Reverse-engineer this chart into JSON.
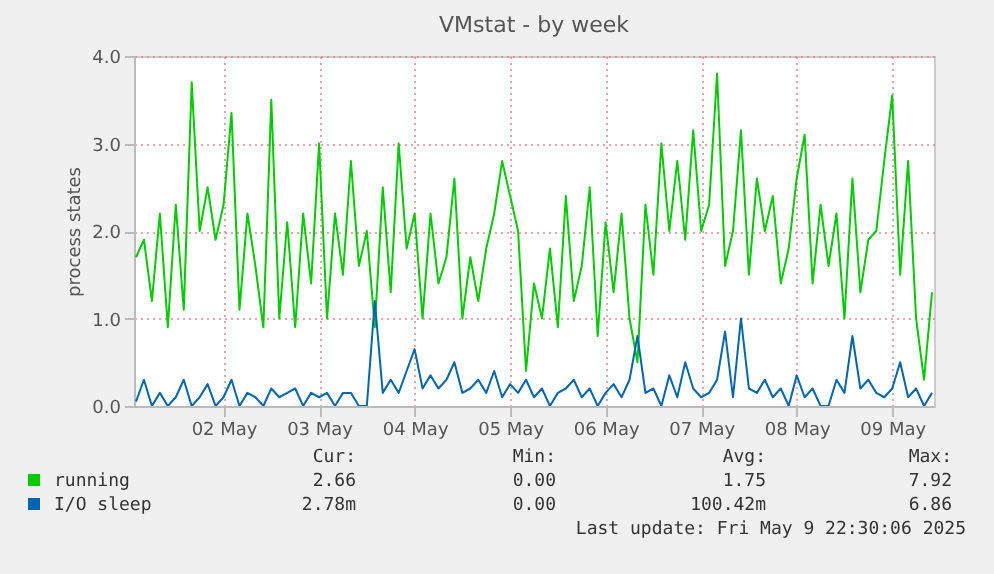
{
  "chart_data": {
    "type": "line",
    "title": "VMstat - by week",
    "ylabel": "process states",
    "x": [
      "2025-05-01T14:00",
      "2025-05-01T16:00",
      "2025-05-01T18:00",
      "2025-05-01T20:00",
      "2025-05-01T22:00",
      "2025-05-02T00:00",
      "2025-05-02T02:00",
      "2025-05-02T04:00",
      "2025-05-02T06:00",
      "2025-05-02T08:00",
      "2025-05-02T10:00",
      "2025-05-02T12:00",
      "2025-05-02T14:00",
      "2025-05-02T16:00",
      "2025-05-02T18:00",
      "2025-05-02T20:00",
      "2025-05-02T22:00",
      "2025-05-03T00:00",
      "2025-05-03T02:00",
      "2025-05-03T04:00",
      "2025-05-03T06:00",
      "2025-05-03T08:00",
      "2025-05-03T10:00",
      "2025-05-03T12:00",
      "2025-05-03T14:00",
      "2025-05-03T16:00",
      "2025-05-03T18:00",
      "2025-05-03T20:00",
      "2025-05-03T22:00",
      "2025-05-04T00:00",
      "2025-05-04T02:00",
      "2025-05-04T04:00",
      "2025-05-04T06:00",
      "2025-05-04T08:00",
      "2025-05-04T10:00",
      "2025-05-04T12:00",
      "2025-05-04T14:00",
      "2025-05-04T16:00",
      "2025-05-04T18:00",
      "2025-05-04T20:00",
      "2025-05-04T22:00",
      "2025-05-05T00:00",
      "2025-05-05T02:00",
      "2025-05-05T04:00",
      "2025-05-05T06:00",
      "2025-05-05T08:00",
      "2025-05-05T10:00",
      "2025-05-05T12:00",
      "2025-05-05T14:00",
      "2025-05-05T16:00",
      "2025-05-05T18:00",
      "2025-05-05T20:00",
      "2025-05-05T22:00",
      "2025-05-06T00:00",
      "2025-05-06T02:00",
      "2025-05-06T04:00",
      "2025-05-06T06:00",
      "2025-05-06T08:00",
      "2025-05-06T10:00",
      "2025-05-06T12:00",
      "2025-05-06T14:00",
      "2025-05-06T16:00",
      "2025-05-06T18:00",
      "2025-05-06T20:00",
      "2025-05-06T22:00",
      "2025-05-07T00:00",
      "2025-05-07T02:00",
      "2025-05-07T04:00",
      "2025-05-07T06:00",
      "2025-05-07T08:00",
      "2025-05-07T10:00",
      "2025-05-07T12:00",
      "2025-05-07T14:00",
      "2025-05-07T16:00",
      "2025-05-07T18:00",
      "2025-05-07T20:00",
      "2025-05-07T22:00",
      "2025-05-08T00:00",
      "2025-05-08T02:00",
      "2025-05-08T04:00",
      "2025-05-08T06:00",
      "2025-05-08T08:00",
      "2025-05-08T10:00",
      "2025-05-08T12:00",
      "2025-05-08T14:00",
      "2025-05-08T16:00",
      "2025-05-08T18:00",
      "2025-05-08T20:00",
      "2025-05-08T22:00",
      "2025-05-09T00:00",
      "2025-05-09T02:00",
      "2025-05-09T04:00",
      "2025-05-09T06:00",
      "2025-05-09T08:00",
      "2025-05-09T10:00",
      "2025-05-09T12:00",
      "2025-05-09T14:00",
      "2025-05-09T16:00",
      "2025-05-09T18:00",
      "2025-05-09T20:00",
      "2025-05-09T22:00"
    ],
    "series": [
      {
        "name": "running",
        "color": "#00cc00",
        "values": [
          1.7,
          1.9,
          1.2,
          2.2,
          0.9,
          2.3,
          1.1,
          3.7,
          2.0,
          2.5,
          1.9,
          2.3,
          3.35,
          1.1,
          2.2,
          1.6,
          0.9,
          3.5,
          1.0,
          2.1,
          0.9,
          2.2,
          1.4,
          3.0,
          1.0,
          2.2,
          1.5,
          2.8,
          1.6,
          2.0,
          0.9,
          2.5,
          1.3,
          3.0,
          1.8,
          2.2,
          1.0,
          2.2,
          1.4,
          1.7,
          2.6,
          1.0,
          1.7,
          1.2,
          1.8,
          2.2,
          2.8,
          2.4,
          2.0,
          0.4,
          1.4,
          1.0,
          1.8,
          0.9,
          2.4,
          1.2,
          1.6,
          2.5,
          0.8,
          2.1,
          1.3,
          2.2,
          1.0,
          0.5,
          2.3,
          1.5,
          3.0,
          2.0,
          2.8,
          1.9,
          3.15,
          2.0,
          2.3,
          3.8,
          1.6,
          2.0,
          3.15,
          1.5,
          2.6,
          2.0,
          2.4,
          1.4,
          1.8,
          2.6,
          3.1,
          1.4,
          2.3,
          1.6,
          2.2,
          1.0,
          2.6,
          1.3,
          1.9,
          2.0,
          2.8,
          3.55,
          1.5,
          2.8,
          1.0,
          0.3,
          1.3
        ]
      },
      {
        "name": "I/O sleep",
        "color": "#0066b3",
        "values": [
          0.05,
          0.3,
          0.0,
          0.15,
          0.0,
          0.1,
          0.3,
          0.0,
          0.1,
          0.25,
          0.0,
          0.1,
          0.3,
          0.0,
          0.15,
          0.1,
          0.0,
          0.2,
          0.1,
          0.15,
          0.2,
          0.0,
          0.15,
          0.1,
          0.15,
          0.0,
          0.15,
          0.15,
          0.0,
          0.0,
          1.2,
          0.15,
          0.3,
          0.15,
          0.4,
          0.65,
          0.2,
          0.35,
          0.2,
          0.3,
          0.5,
          0.15,
          0.2,
          0.3,
          0.15,
          0.4,
          0.1,
          0.25,
          0.15,
          0.3,
          0.1,
          0.2,
          0.0,
          0.15,
          0.2,
          0.3,
          0.1,
          0.2,
          0.0,
          0.15,
          0.25,
          0.1,
          0.3,
          0.8,
          0.15,
          0.2,
          0.0,
          0.35,
          0.1,
          0.5,
          0.2,
          0.1,
          0.15,
          0.3,
          0.85,
          0.1,
          1.0,
          0.2,
          0.15,
          0.3,
          0.1,
          0.2,
          0.0,
          0.35,
          0.1,
          0.2,
          0.0,
          0.0,
          0.3,
          0.15,
          0.8,
          0.2,
          0.3,
          0.15,
          0.1,
          0.2,
          0.5,
          0.1,
          0.2,
          0.0,
          0.15
        ]
      }
    ],
    "xlim": [
      "2025-05-01T13:30",
      "2025-05-09T22:30"
    ],
    "xticks": [
      {
        "value": "2025-05-02T12:00",
        "label": "02 May"
      },
      {
        "value": "2025-05-03T12:00",
        "label": "03 May"
      },
      {
        "value": "2025-05-04T12:00",
        "label": "04 May"
      },
      {
        "value": "2025-05-05T12:00",
        "label": "05 May"
      },
      {
        "value": "2025-05-06T12:00",
        "label": "06 May"
      },
      {
        "value": "2025-05-07T12:00",
        "label": "07 May"
      },
      {
        "value": "2025-05-08T12:00",
        "label": "08 May"
      },
      {
        "value": "2025-05-09T12:00",
        "label": "09 May"
      }
    ],
    "ylim": [
      0,
      4
    ],
    "yticks": [
      {
        "value": 0,
        "label": "0.0"
      },
      {
        "value": 1,
        "label": "1.0"
      },
      {
        "value": 2,
        "label": "2.0"
      },
      {
        "value": 3,
        "label": "3.0"
      },
      {
        "value": 4,
        "label": "4.0"
      }
    ],
    "grid": true,
    "legend": "bottom",
    "marker": "none",
    "line_style": "solid",
    "annotations": [
      "Cur:",
      "Min:",
      "Avg:",
      "Max:",
      "2.66",
      "0.00",
      "1.75",
      "7.92",
      "2.78m",
      "0.00",
      "100.42m",
      "6.86",
      "Last update: Fri May  9 22:30:06 2025"
    ]
  }
}
